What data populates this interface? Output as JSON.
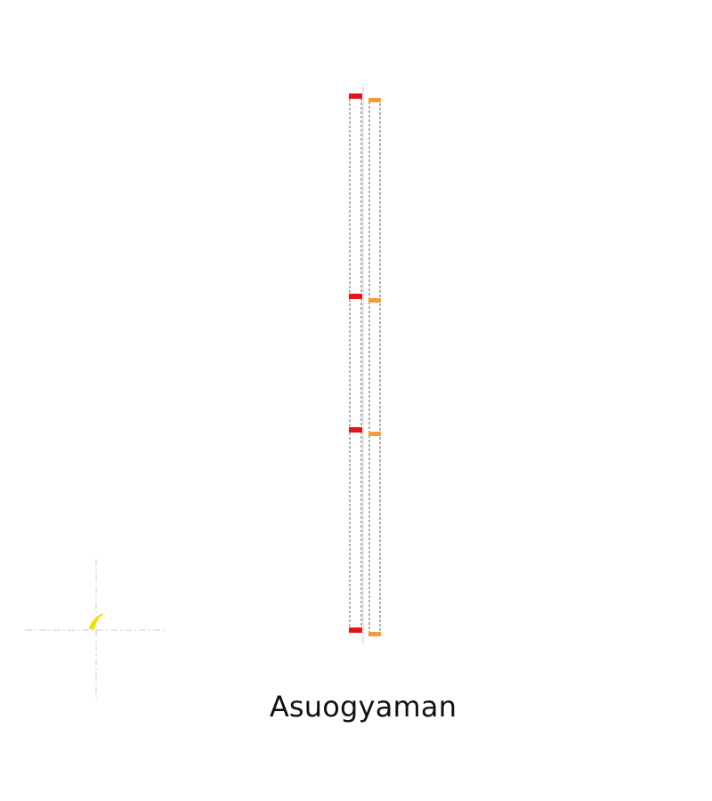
{
  "caption": "Asuogyaman",
  "icons": {
    "marker": "crescent-marker-icon"
  },
  "colors": {
    "background": "#ffffff",
    "red": "#e81416",
    "orange": "#f39c3c",
    "outline": "#666666",
    "guide": "#d6d6d6",
    "marker": "#f6df00"
  }
}
